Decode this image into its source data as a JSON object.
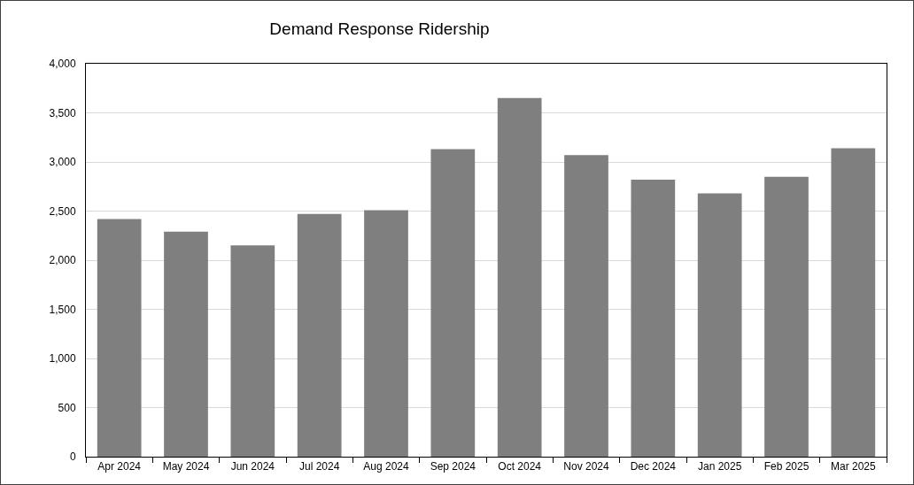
{
  "chart_data": {
    "type": "bar",
    "title": "Demand Response Ridership",
    "categories": [
      "Apr 2024",
      "May 2024",
      "Jun 2024",
      "Jul 2024",
      "Aug 2024",
      "Sep 2024",
      "Oct 2024",
      "Nov 2024",
      "Dec 2024",
      "Jan 2025",
      "Feb 2025",
      "Mar 2025"
    ],
    "values": [
      2420,
      2290,
      2150,
      2470,
      2510,
      3130,
      3650,
      3070,
      2820,
      2680,
      2850,
      3140
    ],
    "color": "#7f7f7f",
    "ylim": [
      0,
      4000
    ],
    "yticks": [
      0,
      {
        "value": 500,
        "label": "500"
      },
      {
        "value": 1000,
        "label": "1,000"
      },
      {
        "value": 1500,
        "label": "1,500"
      },
      {
        "value": 2000,
        "label": "2,000"
      },
      {
        "value": 2500,
        "label": "2,500"
      },
      {
        "value": 3000,
        "label": "3,000"
      },
      {
        "value": 3500,
        "label": "3,500"
      },
      {
        "value": 4000,
        "label": "4,000"
      }
    ],
    "grid": "y"
  }
}
